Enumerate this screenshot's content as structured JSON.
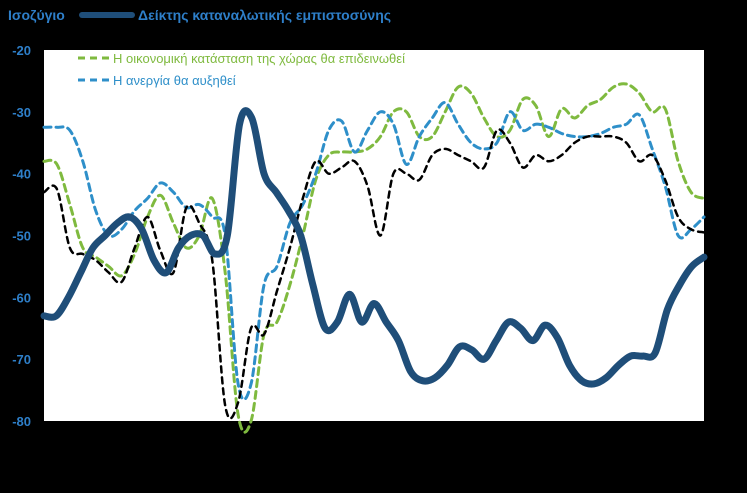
{
  "chart_data": {
    "type": "line",
    "ylim": [
      -80,
      -20
    ],
    "yticks": [
      "-20",
      "-30",
      "-40",
      "-50",
      "-60",
      "-70",
      "-80"
    ],
    "ytick_values": [
      -20,
      -30,
      -40,
      -50,
      -60,
      -70,
      -80
    ],
    "ylabel": "Ισοζύγιο",
    "grid": false,
    "legend_position": "top",
    "x_points": 61,
    "series": [
      {
        "name": "Δείκτης καταναλωτικής εμπιστοσύνης",
        "color": "#1f4e79",
        "style": "solid-thick",
        "values": [
          -63,
          -63,
          -60,
          -56,
          -52,
          -50,
          -48,
          -47,
          -49,
          -54,
          -56,
          -52,
          -50,
          -50,
          -53,
          -50,
          -32,
          -31,
          -40,
          -43,
          -46,
          -50,
          -58,
          -65,
          -64,
          -59.5,
          -64,
          -61,
          -64,
          -67,
          -72,
          -73.5,
          -73,
          -71,
          -68,
          -68.5,
          -70,
          -67,
          -64,
          -65,
          -67,
          -64.5,
          -66.5,
          -71,
          -73.5,
          -74,
          -73,
          -71,
          -69.5,
          -69.5,
          -69,
          -62,
          -58,
          -55,
          -53.5
        ]
      },
      {
        "name": "Η οικονομική κατάσταση της χώρας θα επιδεινωθεί",
        "color": "#7fba3f",
        "style": "dashed",
        "values": [
          -38,
          -38.5,
          -45,
          -52,
          -53.5,
          -55,
          -56.5,
          -53,
          -47,
          -43.5,
          -48,
          -52,
          -50,
          -44,
          -56,
          -79,
          -80,
          -66,
          -64,
          -58,
          -50,
          -41,
          -37,
          -36.5,
          -36.5,
          -36,
          -34,
          -30,
          -30,
          -34,
          -34,
          -30,
          -26,
          -27,
          -31,
          -34,
          -33,
          -28,
          -29,
          -34,
          -29.5,
          -31,
          -29,
          -28,
          -26,
          -25.5,
          -27,
          -30,
          -29.5,
          -38,
          -43,
          -44
        ]
      },
      {
        "name": "Η ανεργία θα αυξηθεί",
        "color": "#2e8fc9",
        "style": "dashed",
        "values": [
          -32.5,
          -32.5,
          -33,
          -38,
          -46,
          -50,
          -49,
          -46,
          -44,
          -41.5,
          -43,
          -45.5,
          -45,
          -47,
          -50,
          -74,
          -74,
          -58,
          -55,
          -48,
          -45,
          -40,
          -33,
          -31.5,
          -36.5,
          -33,
          -30,
          -32,
          -38.5,
          -34,
          -31,
          -28.5,
          -32,
          -35,
          -36,
          -35,
          -30,
          -33,
          -32,
          -32.5,
          -33.5,
          -34,
          -34,
          -33.5,
          -32.5,
          -32,
          -30.5,
          -36,
          -42,
          -50,
          -49,
          -47
        ]
      },
      {
        "name": "",
        "color": "#000000",
        "style": "dashed-black",
        "values": [
          -43,
          -42.5,
          -52,
          -53,
          -54,
          -56,
          -57.5,
          -52,
          -47,
          -52.5,
          -56,
          -45.5,
          -48,
          -54,
          -77.5,
          -77,
          -65,
          -66,
          -59,
          -52,
          -44,
          -38,
          -40,
          -39,
          -38,
          -42,
          -50,
          -40,
          -40,
          -41,
          -37,
          -36,
          -37,
          -38,
          -39,
          -33,
          -35,
          -39,
          -37,
          -38,
          -37,
          -35,
          -34,
          -34,
          -34,
          -35,
          -38,
          -37,
          -41,
          -47,
          -49,
          -49.5
        ]
      }
    ]
  }
}
